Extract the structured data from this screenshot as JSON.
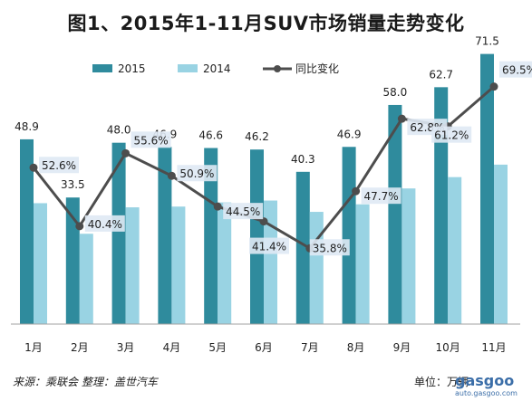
{
  "title": "图1、2015年1-11月SUV市场销量走势变化",
  "footer": {
    "source": "来源：乘联会   整理：盖世汽车",
    "unit": "单位：万辆"
  },
  "watermark": {
    "brand": "gasgoo",
    "url": "auto.gasgoo.com"
  },
  "colors": {
    "series_2015": "#2f8b9d",
    "series_2014": "#99d3e3",
    "yoy_line": "#4d4d4d",
    "yoy_label_bg": "#dfe9f4"
  },
  "chart_data": {
    "type": "bar",
    "categories": [
      "1月",
      "2月",
      "3月",
      "4月",
      "5月",
      "6月",
      "7月",
      "8月",
      "9月",
      "10月",
      "11月"
    ],
    "series": [
      {
        "name": "2015",
        "type": "bar",
        "values": [
          48.9,
          33.5,
          48.0,
          46.9,
          46.6,
          46.2,
          40.3,
          46.9,
          58.0,
          62.7,
          71.5
        ]
      },
      {
        "name": "2014",
        "type": "bar",
        "values": [
          32.0,
          23.9,
          30.9,
          31.1,
          32.2,
          32.7,
          29.7,
          31.7,
          35.9,
          38.9,
          42.2
        ]
      },
      {
        "name": "同比变化",
        "type": "line",
        "unit": "%",
        "values": [
          52.6,
          40.4,
          55.6,
          50.9,
          44.5,
          41.4,
          35.8,
          47.7,
          62.8,
          61.2,
          69.5
        ]
      }
    ],
    "bar_labels": [
      "48.9",
      "33.5",
      "48.0",
      "46.9",
      "46.6",
      "46.2",
      "40.3",
      "46.9",
      "58.0",
      "62.7",
      "71.5"
    ],
    "line_labels": [
      "52.6%",
      "40.4%",
      "55.6%",
      "50.9%",
      "44.5%",
      "41.4%",
      "35.8%",
      "47.7%",
      "62.8%",
      "61.2%",
      "69.5%"
    ],
    "ylim": [
      0,
      75
    ],
    "line_ylim": [
      20,
      80
    ],
    "grid": false,
    "legend": "top"
  }
}
